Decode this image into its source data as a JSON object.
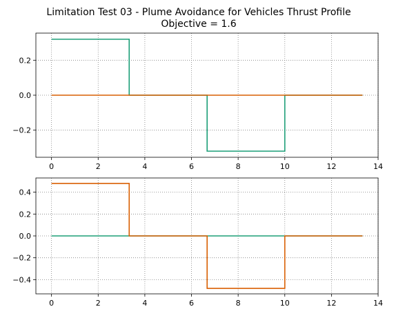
{
  "figure": {
    "title": [
      "Limitation Test 03 - Plume Avoidance for Vehicles Thrust Profile",
      "Objective = 1.6"
    ]
  },
  "colors": {
    "series_a": "#1b9e77",
    "series_b": "#d95f02",
    "grid": "#7f7f7f",
    "axis": "#000000"
  },
  "chart_data": [
    {
      "type": "line",
      "drawstyle": "steps-post",
      "xlim": [
        -0.67,
        14.0
      ],
      "ylim": [
        -0.355,
        0.355
      ],
      "xticks": [
        0,
        2,
        4,
        6,
        8,
        10,
        12,
        14
      ],
      "yticks": [
        -0.2,
        0.0,
        0.2
      ],
      "ytick_labels": [
        "−0.2",
        "0.0",
        "0.2"
      ],
      "grid": true,
      "grid_style": "dotted",
      "series": [
        {
          "color": "#1b9e77",
          "x": [
            0,
            3.33,
            6.67,
            10.0,
            13.33
          ],
          "y": [
            0.32,
            0.0,
            -0.32,
            0.0,
            0.0
          ]
        },
        {
          "color": "#d95f02",
          "x": [
            0,
            3.33,
            6.67,
            10.0,
            13.33
          ],
          "y": [
            0.0,
            0.0,
            0.0,
            0.0,
            0.0
          ]
        }
      ]
    },
    {
      "type": "line",
      "drawstyle": "steps-post",
      "xlim": [
        -0.67,
        14.0
      ],
      "ylim": [
        -0.53,
        0.53
      ],
      "xticks": [
        0,
        2,
        4,
        6,
        8,
        10,
        12,
        14
      ],
      "yticks": [
        -0.4,
        -0.2,
        0.0,
        0.2,
        0.4
      ],
      "ytick_labels": [
        "−0.4",
        "−0.2",
        "0.0",
        "0.2",
        "0.4"
      ],
      "grid": true,
      "grid_style": "dotted",
      "series": [
        {
          "color": "#1b9e77",
          "x": [
            0,
            3.33,
            6.67,
            10.0,
            13.33
          ],
          "y": [
            0.0,
            0.0,
            0.0,
            0.0,
            0.0
          ]
        },
        {
          "color": "#d95f02",
          "x": [
            0,
            3.33,
            6.67,
            10.0,
            13.33
          ],
          "y": [
            0.48,
            0.0,
            -0.48,
            0.0,
            0.0
          ]
        }
      ]
    }
  ]
}
